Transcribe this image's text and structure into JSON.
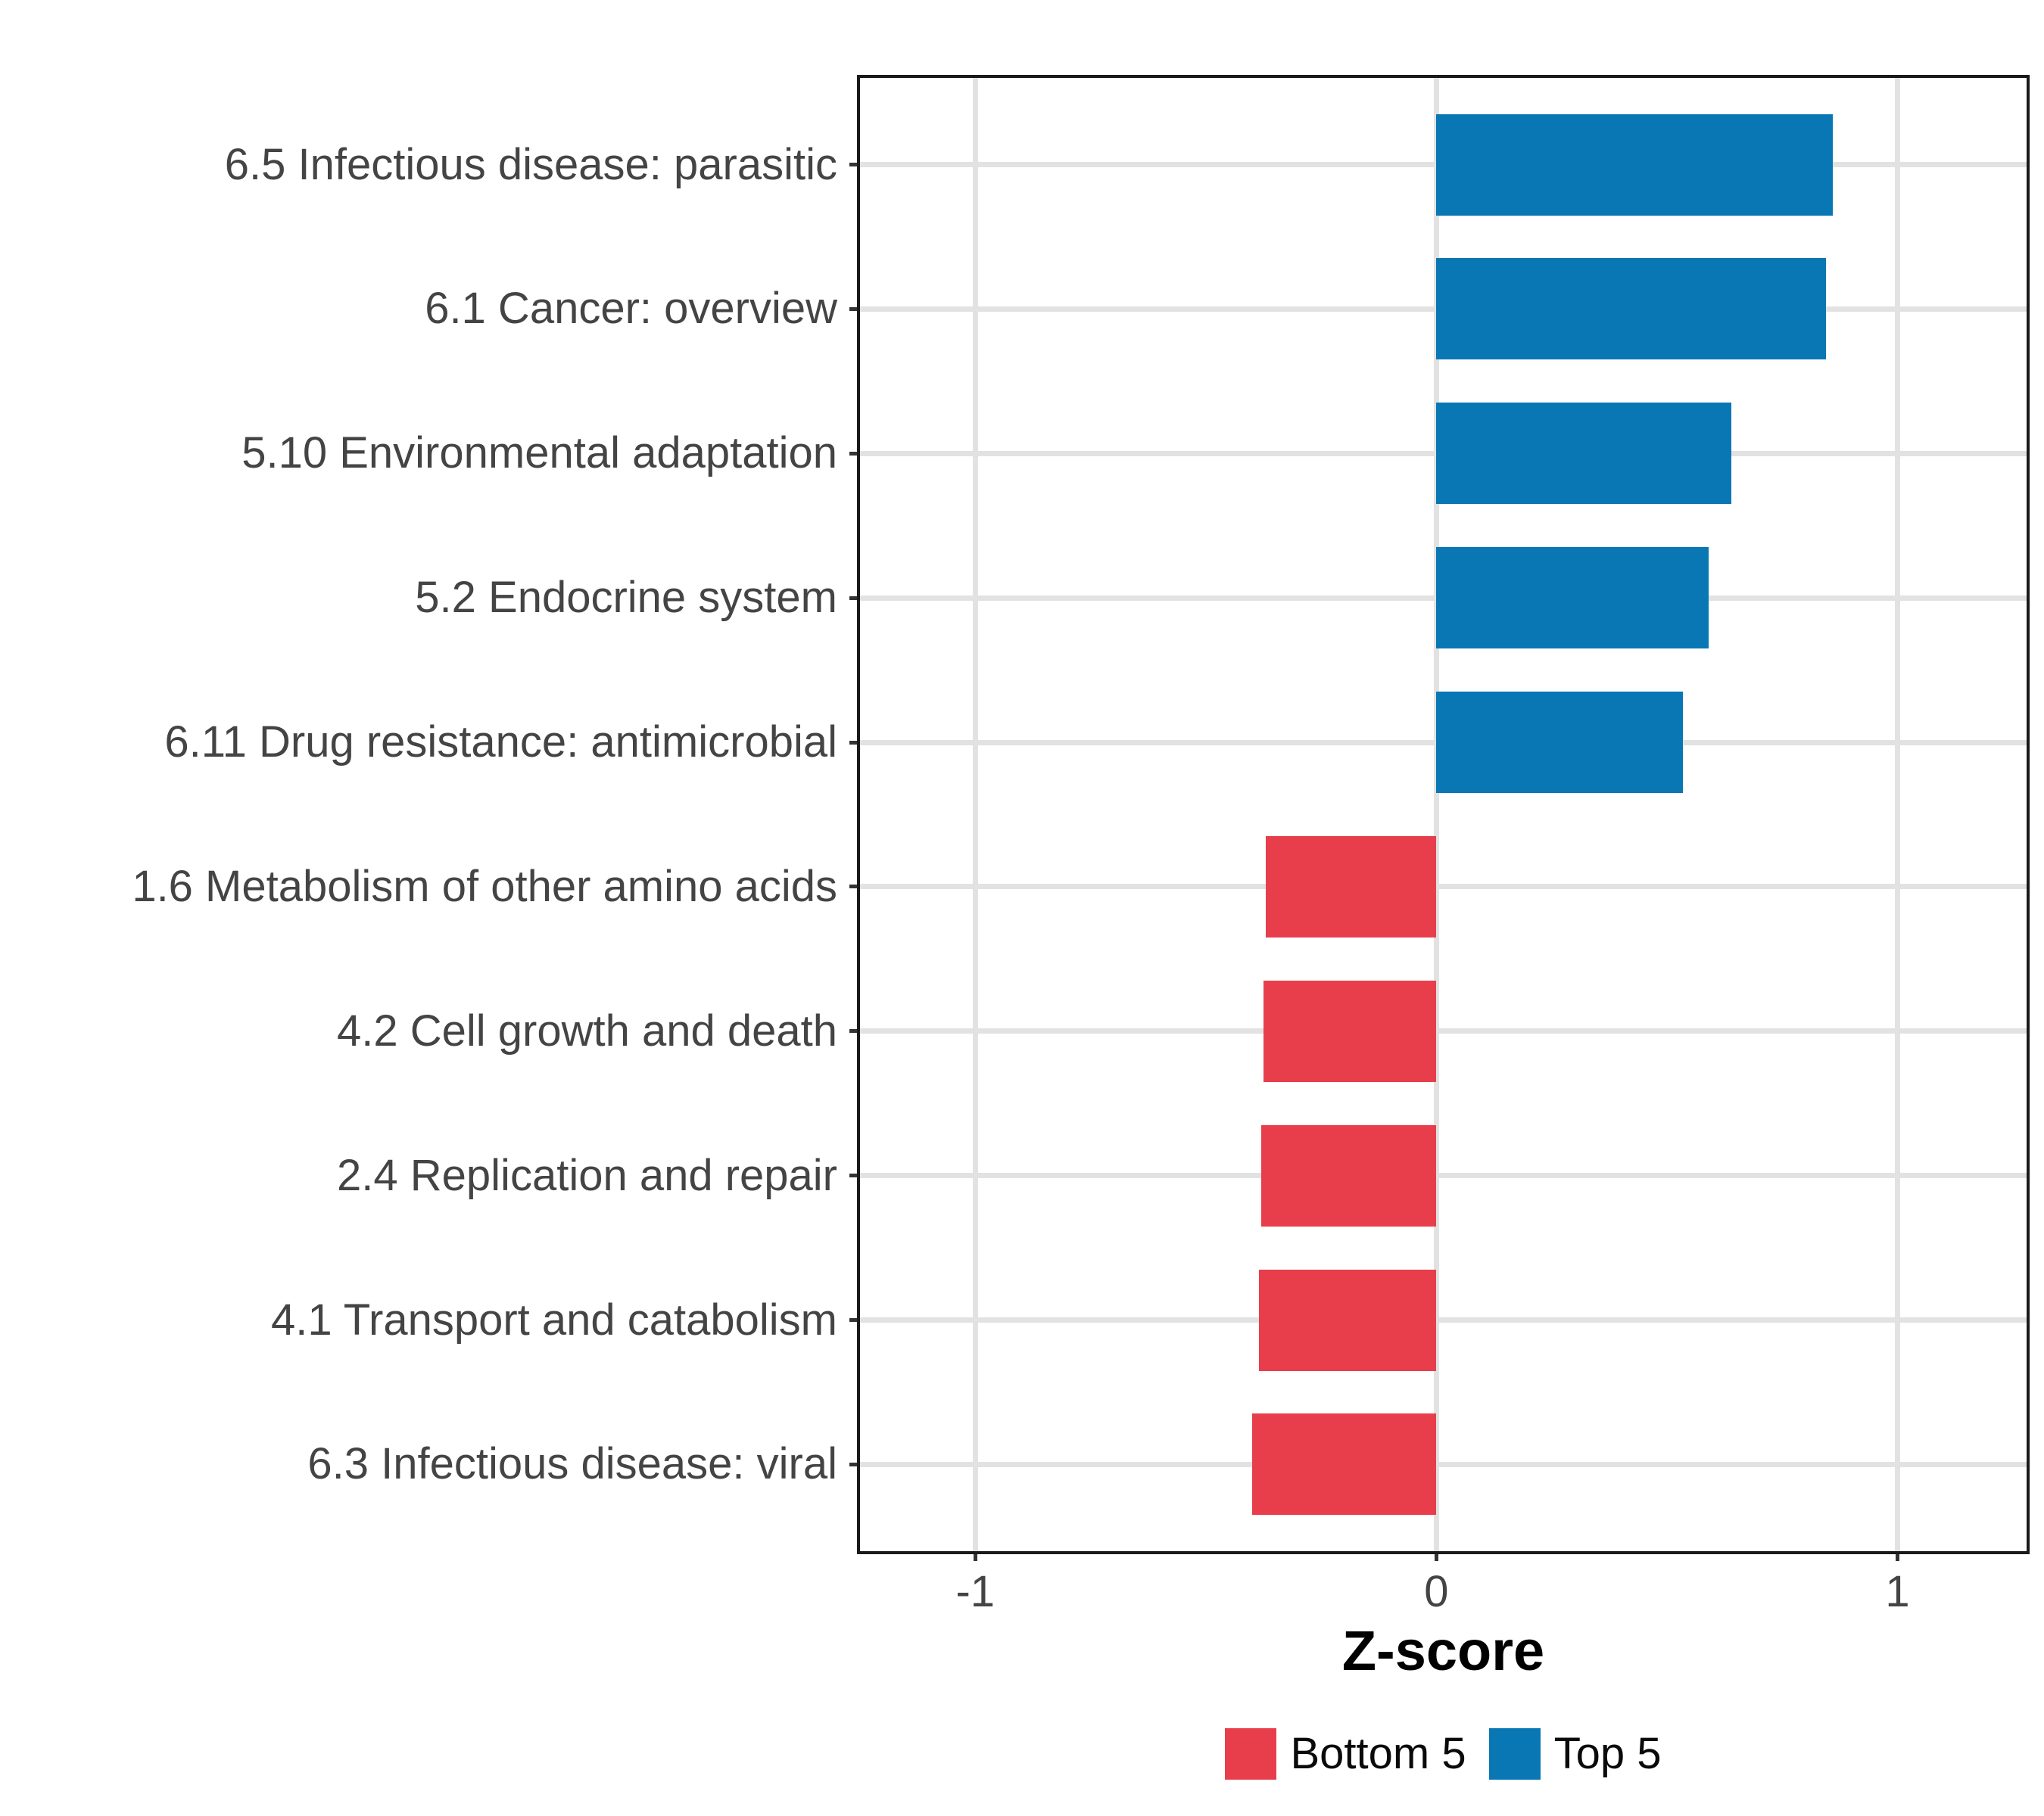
{
  "chart_data": {
    "type": "bar",
    "orientation": "horizontal",
    "title": "",
    "xlabel": "Z-score",
    "ylabel": "",
    "categories": [
      "6.5 Infectious disease: parasitic",
      "6.1 Cancer: overview",
      "5.10 Environmental adaptation",
      "5.2 Endocrine system",
      "6.11 Drug resistance: antimicrobial",
      "1.6 Metabolism of other amino acids",
      "4.2 Cell growth and death",
      "2.4 Replication and repair",
      "4.1 Transport and catabolism",
      "6.3 Infectious disease: viral"
    ],
    "values": [
      0.86,
      0.845,
      0.64,
      0.59,
      0.535,
      -0.37,
      -0.375,
      -0.38,
      -0.385,
      -0.4
    ],
    "groups": [
      "Top 5",
      "Top 5",
      "Top 5",
      "Top 5",
      "Top 5",
      "Bottom 5",
      "Bottom 5",
      "Bottom 5",
      "Bottom 5",
      "Bottom 5"
    ],
    "group_colors": {
      "Bottom 5": "#E83E4C",
      "Top 5": "#0877B4"
    },
    "xlim": [
      -1.25,
      1.28
    ],
    "xticks": [
      -1,
      0,
      1
    ],
    "xtick_labels": [
      "-1",
      "0",
      "1"
    ],
    "grid": true,
    "legend_position": "bottom",
    "legend": [
      {
        "label": "Bottom 5",
        "color": "#E83E4C"
      },
      {
        "label": "Top 5",
        "color": "#0877B4"
      }
    ]
  },
  "colors": {
    "background": "#FFFFFF",
    "grid": "#E2E2E2",
    "axis_text": "#444444",
    "axis_line": "#1A1A1A",
    "tick": "#333333"
  }
}
